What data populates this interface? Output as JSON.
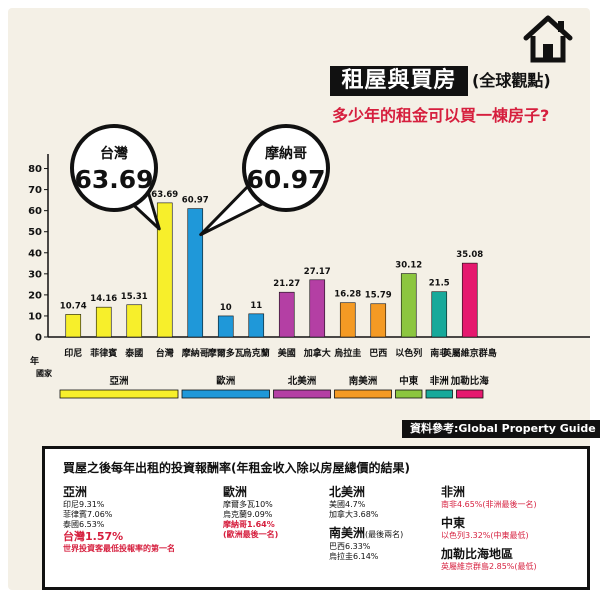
{
  "header": {
    "title": "租屋與買房",
    "title_suffix": "(全球觀點)",
    "subtitle": "多少年的租金可以買一棟房子?"
  },
  "chart_data": {
    "type": "bar",
    "categories": [
      "印尼",
      "菲律賓",
      "泰國",
      "台灣",
      "摩納哥",
      "摩爾多瓦",
      "烏克蘭",
      "美國",
      "加拿大",
      "烏拉圭",
      "巴西",
      "以色列",
      "南非",
      "英屬維京群島"
    ],
    "values": [
      10.74,
      14.16,
      15.31,
      63.69,
      60.97,
      10,
      11,
      21.27,
      27.17,
      16.28,
      15.79,
      30.12,
      21.5,
      35.08
    ],
    "value_labels": [
      "10.74",
      "14.16",
      "15.31",
      "63.69",
      "60.97",
      "10",
      "11",
      "21.27",
      "27.17",
      "16.28",
      "15.79",
      "30.12",
      "21.5",
      "35.08"
    ],
    "colors": [
      "#f7ef2b",
      "#f7ef2b",
      "#f7ef2b",
      "#f7ef2b",
      "#1f98d9",
      "#1f98d9",
      "#1f98d9",
      "#b43fa4",
      "#b43fa4",
      "#f49a24",
      "#f49a24",
      "#8cc63f",
      "#17a99a",
      "#e5186e"
    ],
    "ylim": [
      0,
      85
    ],
    "yticks": [
      0,
      10,
      20,
      30,
      40,
      50,
      60,
      70,
      80
    ],
    "ylabel_top": "年",
    "ylabel_bottom": "國家",
    "callouts": [
      {
        "label": "台灣",
        "value": "63.69"
      },
      {
        "label": "摩納哥",
        "value": "60.97"
      }
    ],
    "regions": [
      {
        "name": "亞洲",
        "color": "#f7ef2b",
        "from": 0,
        "to": 3
      },
      {
        "name": "歐洲",
        "color": "#1f98d9",
        "from": 4,
        "to": 6
      },
      {
        "name": "北美洲",
        "color": "#b43fa4",
        "from": 7,
        "to": 8
      },
      {
        "name": "南美洲",
        "color": "#f49a24",
        "from": 9,
        "to": 10
      },
      {
        "name": "中東",
        "color": "#8cc63f",
        "from": 11,
        "to": 11
      },
      {
        "name": "非洲",
        "color": "#17a99a",
        "from": 12,
        "to": 12
      },
      {
        "name": "加勒比海",
        "color": "#e5186e",
        "from": 13,
        "to": 13
      }
    ]
  },
  "source_label": "資料參考:Global Property Guide",
  "panel": {
    "title": "買屋之後每年出租的投資報酬率(年租金收入除以房屋總價的結果)",
    "asia": {
      "heading": "亞洲",
      "l1": "印尼9.31%",
      "l2": "菲律賓7.06%",
      "l3": "泰國6.53%",
      "l4": "台灣1.57%",
      "l5": "世界投資客最低投報率的第一名"
    },
    "europe": {
      "heading": "歐洲",
      "l1": "摩爾多瓦10%",
      "l2": "烏克蘭9.09%",
      "l3": "摩納哥1.64%",
      "l4": "(歐洲最後一名)"
    },
    "namerica": {
      "heading": "北美洲",
      "l1": "美國4.7%",
      "l2": "加拿大3.68%"
    },
    "samerica": {
      "heading": "南美洲",
      "heading_note": "(最後兩名)",
      "l1": "巴西6.33%",
      "l2": "烏拉圭6.14%"
    },
    "africa": {
      "heading": "非洲",
      "l1": "南非4.65%(非洲最後一名)"
    },
    "mideast": {
      "heading": "中東",
      "l1": "以色列3.32%(中東最低)"
    },
    "caribbean": {
      "heading": "加勒比海地區",
      "l1": "英屬維京群島2.85%(最低)"
    }
  }
}
